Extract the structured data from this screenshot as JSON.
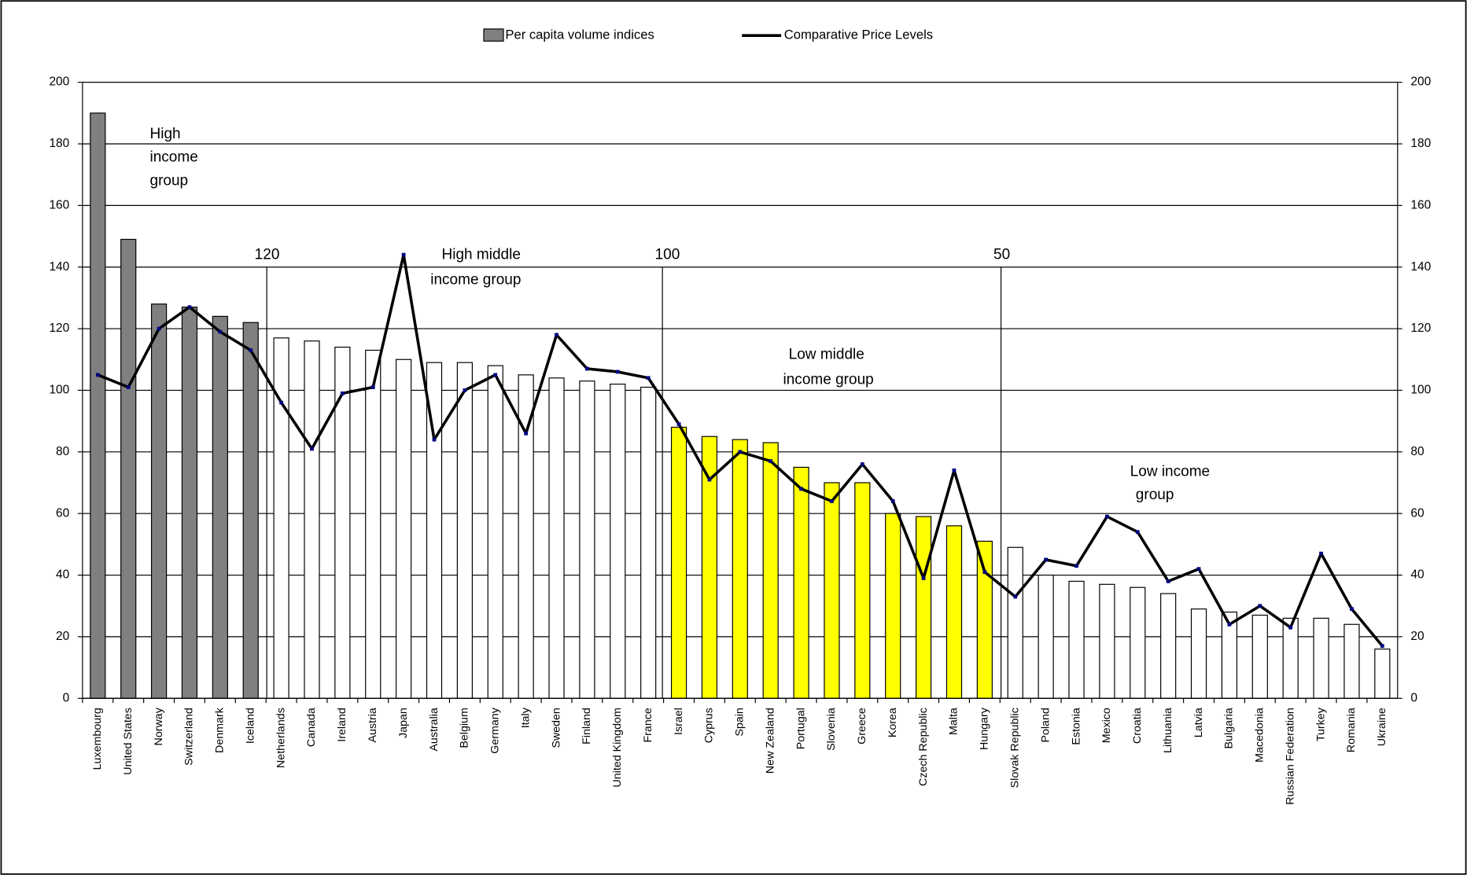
{
  "chart_data": {
    "type": "bar_line",
    "categories": [
      "Luxembourg",
      "United States",
      "Norway",
      "Switzerland",
      "Denmark",
      "Iceland",
      "Netherlands",
      "Canada",
      "Ireland",
      "Austria",
      "Japan",
      "Australia",
      "Belgium",
      "Germany",
      "Italy",
      "Sweden",
      "Finland",
      "United Kingdom",
      "France",
      "Israel",
      "Cyprus",
      "Spain",
      "New Zealand",
      "Portugal",
      "Slovenia",
      "Greece",
      "Korea",
      "Czech Republic",
      "Malta",
      "Hungary",
      "Slovak Republic",
      "Poland",
      "Estonia",
      "Mexico",
      "Croatia",
      "Lithuania",
      "Latvia",
      "Bulgaria",
      "Macedonia",
      "Russian Federation",
      "Turkey",
      "Romania",
      "Ukraine"
    ],
    "series": [
      {
        "name": "Per capita volume indices",
        "color": "#808080",
        "colors": [
          "#808080",
          "#808080",
          "#808080",
          "#808080",
          "#808080",
          "#808080",
          "#ffffff",
          "#ffffff",
          "#ffffff",
          "#ffffff",
          "#ffffff",
          "#ffffff",
          "#ffffff",
          "#ffffff",
          "#ffffff",
          "#ffffff",
          "#ffffff",
          "#ffffff",
          "#ffffff",
          "#ffff00",
          "#ffff00",
          "#ffff00",
          "#ffff00",
          "#ffff00",
          "#ffff00",
          "#ffff00",
          "#ffff00",
          "#ffff00",
          "#ffff00",
          "#ffff00",
          "#ffffff",
          "#ffffff",
          "#ffffff",
          "#ffffff",
          "#ffffff",
          "#ffffff",
          "#ffffff",
          "#ffffff",
          "#ffffff",
          "#ffffff",
          "#ffffff",
          "#ffffff",
          "#ffffff"
        ],
        "values": [
          190,
          149,
          128,
          127,
          124,
          122,
          117,
          116,
          114,
          113,
          110,
          109,
          109,
          108,
          105,
          104,
          103,
          102,
          101,
          88,
          85,
          84,
          83,
          75,
          70,
          70,
          60,
          59,
          56,
          51,
          49,
          40,
          38,
          37,
          36,
          34,
          29,
          28,
          27,
          26,
          26,
          24,
          16
        ]
      },
      {
        "name": "Comparative Price Levels",
        "color": "#000000",
        "marker_color": "#000080",
        "axis": "y2",
        "values": [
          105,
          101,
          120,
          127,
          119,
          113,
          96,
          81,
          99,
          101,
          144,
          84,
          100,
          105,
          86,
          118,
          107,
          106,
          104,
          89,
          71,
          80,
          77,
          68,
          64,
          76,
          64,
          39,
          74,
          41,
          33,
          45,
          43,
          59,
          54,
          38,
          42,
          24,
          30,
          23,
          47,
          29,
          17
        ]
      }
    ],
    "ylim": [
      0,
      200
    ],
    "yticks": [
      0,
      20,
      40,
      60,
      80,
      100,
      120,
      140,
      160,
      180,
      200
    ],
    "y2lim": [
      0,
      200
    ],
    "y2ticks": [
      0,
      20,
      40,
      60,
      80,
      100,
      120,
      140,
      160,
      180,
      200
    ],
    "grid": true,
    "annotations": [
      {
        "lines": [
          "High",
          "income",
          "group"
        ]
      },
      {
        "lines": [
          "120"
        ]
      },
      {
        "lines": [
          "High middle",
          "income group"
        ]
      },
      {
        "lines": [
          "100"
        ]
      },
      {
        "lines": [
          "50"
        ]
      },
      {
        "lines": [
          "Low middle",
          "income group"
        ]
      },
      {
        "lines": [
          "Low income",
          "group"
        ]
      }
    ]
  }
}
